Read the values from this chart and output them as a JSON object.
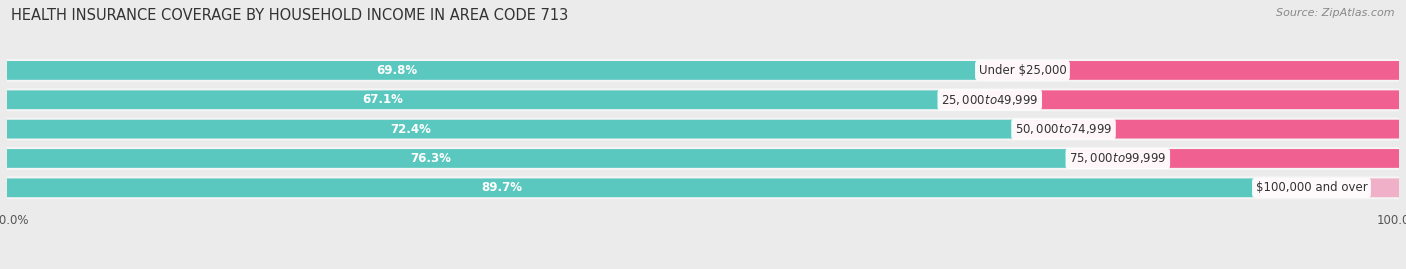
{
  "title": "HEALTH INSURANCE COVERAGE BY HOUSEHOLD INCOME IN AREA CODE 713",
  "source": "Source: ZipAtlas.com",
  "categories": [
    "Under $25,000",
    "$25,000 to $49,999",
    "$50,000 to $74,999",
    "$75,000 to $99,999",
    "$100,000 and over"
  ],
  "with_coverage": [
    69.8,
    67.1,
    72.4,
    76.3,
    89.7
  ],
  "without_coverage": [
    30.2,
    32.9,
    27.6,
    23.7,
    10.3
  ],
  "color_with": "#5BC8C0",
  "color_without_rows": [
    "#F06090",
    "#F06090",
    "#F06090",
    "#F06090",
    "#F0B0C8"
  ],
  "bg_color": "#EBEBEB",
  "row_bg": "#F5F5F5",
  "title_fontsize": 10.5,
  "source_fontsize": 8,
  "value_fontsize": 8.5,
  "category_fontsize": 8.5,
  "legend_fontsize": 9,
  "bar_height": 0.62,
  "n_rows": 5
}
